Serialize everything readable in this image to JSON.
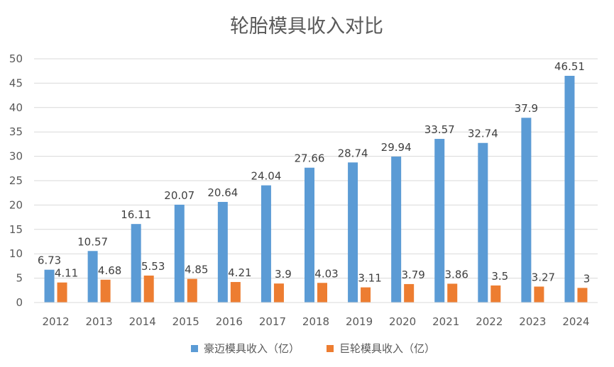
{
  "chart_data": {
    "type": "bar",
    "title": "轮胎模具收入对比",
    "xlabel": "",
    "ylabel": "",
    "ylim": [
      0,
      50
    ],
    "yticks": [
      0,
      5,
      10,
      15,
      20,
      25,
      30,
      35,
      40,
      45,
      50
    ],
    "grid": true,
    "legend_position": "bottom",
    "categories": [
      "2012",
      "2013",
      "2014",
      "2015",
      "2016",
      "2017",
      "2018",
      "2019",
      "2020",
      "2021",
      "2022",
      "2023",
      "2024"
    ],
    "series": [
      {
        "name": "豪迈模具收入（亿）",
        "color": "#5B9BD5",
        "values": [
          6.73,
          10.57,
          16.11,
          20.07,
          20.64,
          24.04,
          27.66,
          28.74,
          29.94,
          33.57,
          32.74,
          37.9,
          46.51
        ],
        "labels": [
          "6.73",
          "10.57",
          "16.11",
          "20.07",
          "20.64",
          "24.04",
          "27.66",
          "28.74",
          "29.94",
          "33.57",
          "32.74",
          "37.9",
          "46.51"
        ]
      },
      {
        "name": "巨轮模具收入（亿）",
        "color": "#ED7D31",
        "values": [
          4.11,
          4.68,
          5.53,
          4.85,
          4.21,
          3.9,
          4.03,
          3.11,
          3.79,
          3.86,
          3.5,
          3.27,
          3
        ],
        "labels": [
          "4.11",
          "4.68",
          "5.53",
          "4.85",
          "4.21",
          "3.9",
          "4.03",
          "3.11",
          "3.79",
          "3.86",
          "3.5",
          "3.27",
          "3"
        ]
      }
    ]
  }
}
